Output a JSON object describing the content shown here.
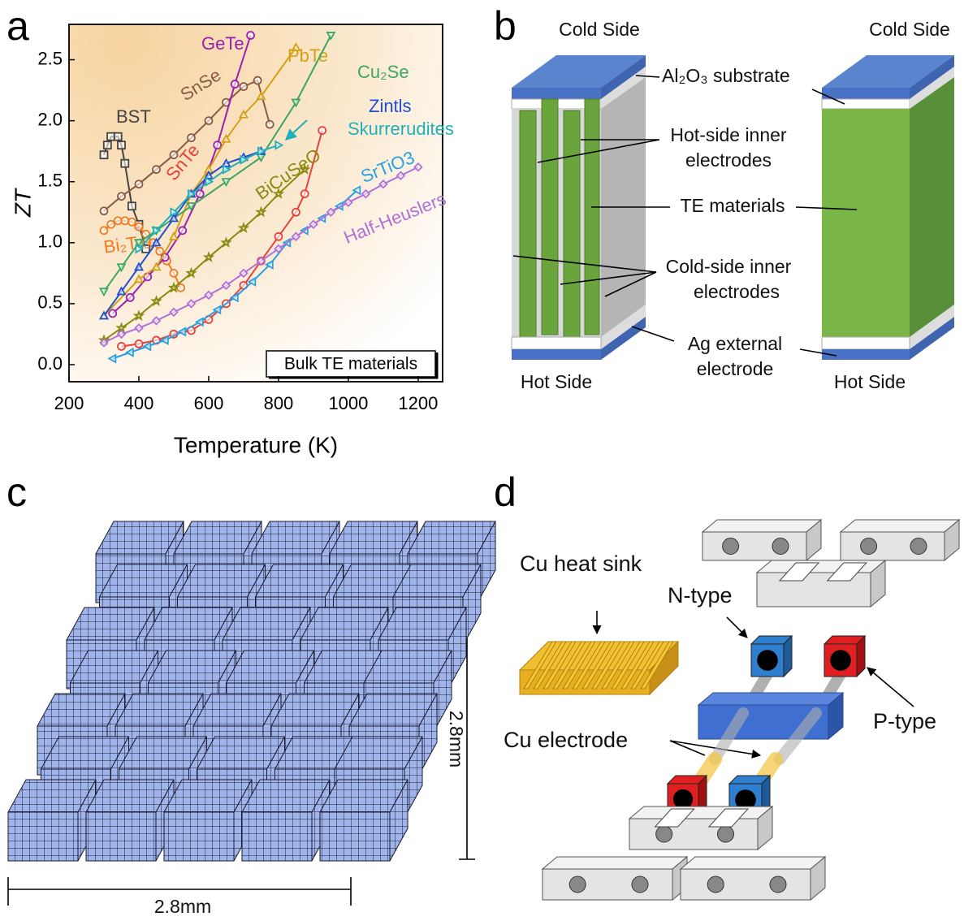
{
  "panel_labels": [
    "a",
    "b",
    "c",
    "d"
  ],
  "chart_data": {
    "type": "line",
    "x_label": "Temperature  (K)",
    "y_label": "ZT",
    "annotation": "Bulk TE materials",
    "xlim": [
      200,
      1270
    ],
    "ylim": [
      -0.14,
      2.79
    ],
    "xticks": [
      200,
      400,
      600,
      800,
      1000,
      1200
    ],
    "yticks": [
      {
        "value": 0,
        "label": "0.0"
      },
      0.5,
      {
        "value": 1,
        "label": "1.0"
      },
      1.5,
      {
        "value": 2,
        "label": "2.0"
      },
      2.5
    ],
    "series": [
      {
        "name": "BST",
        "color": "#444444",
        "marker": "square",
        "x": [
          300,
          310,
          320,
          340,
          350,
          360,
          380,
          400,
          420
        ],
        "values": [
          1.72,
          1.8,
          1.87,
          1.87,
          1.8,
          1.65,
          1.3,
          1.15,
          0.95
        ]
      },
      {
        "name": "Bi₂Te₃",
        "color": "#f07a20",
        "marker": "circle",
        "x": [
          300,
          320,
          340,
          360,
          380,
          400,
          420,
          440,
          460,
          480,
          500,
          520
        ],
        "values": [
          1.1,
          1.15,
          1.18,
          1.18,
          1.17,
          1.13,
          1.07,
          1.0,
          0.93,
          0.85,
          0.75,
          0.63
        ]
      },
      {
        "name": "SnSe",
        "color": "#8b5a44",
        "marker": "circle",
        "x": [
          300,
          350,
          400,
          450,
          500,
          550,
          600,
          650,
          700,
          740,
          775
        ],
        "values": [
          1.26,
          1.38,
          1.48,
          1.6,
          1.72,
          1.86,
          2.0,
          2.15,
          2.28,
          2.33,
          1.97
        ]
      },
      {
        "name": "GeTe",
        "color": "#9b1fb0",
        "marker": "circle",
        "x": [
          325,
          375,
          425,
          475,
          525,
          575,
          625,
          675,
          720
        ],
        "values": [
          0.42,
          0.55,
          0.72,
          0.88,
          1.1,
          1.4,
          1.8,
          2.3,
          2.7
        ]
      },
      {
        "name": "PbTe",
        "color": "#d4a017",
        "marker": "triangle-up",
        "x": [
          300,
          400,
          450,
          500,
          550,
          600,
          650,
          700,
          750,
          850
        ],
        "values": [
          0.4,
          0.7,
          0.8,
          1.05,
          1.4,
          1.6,
          1.85,
          2.05,
          2.2,
          2.6
        ]
      },
      {
        "name": "Cu₂Se",
        "color": "#3aa860",
        "marker": "triangle-down",
        "x": [
          300,
          350,
          400,
          450,
          550,
          650,
          750,
          850,
          950
        ],
        "values": [
          0.6,
          0.8,
          1.0,
          1.1,
          1.3,
          1.5,
          1.7,
          2.15,
          2.7
        ]
      },
      {
        "name": "Zintls",
        "color": "#1f4fcc",
        "marker": "triangle-up",
        "x": [
          300,
          350,
          400,
          450,
          500,
          550,
          600,
          650,
          700,
          750
        ],
        "values": [
          0.4,
          0.6,
          0.8,
          1.0,
          1.2,
          1.4,
          1.55,
          1.65,
          1.7,
          1.75
        ]
      },
      {
        "name": "Skurrerudites",
        "color": "#20b0b8",
        "marker": "triangle-right",
        "x": [
          400,
          450,
          500,
          550,
          600,
          650,
          700,
          750,
          800
        ],
        "values": [
          0.95,
          1.1,
          1.25,
          1.4,
          1.5,
          1.6,
          1.68,
          1.75,
          1.8
        ]
      },
      {
        "name": "SnTe",
        "color": "#e8413c",
        "marker": "circle",
        "x": [
          350,
          400,
          450,
          500,
          550,
          600,
          650,
          700,
          750,
          800,
          850,
          875,
          925
        ],
        "values": [
          0.15,
          0.17,
          0.2,
          0.25,
          0.28,
          0.37,
          0.5,
          0.65,
          0.85,
          1.05,
          1.25,
          1.4,
          1.92
        ]
      },
      {
        "name": "BiCuSeO",
        "color": "#8a8a10",
        "marker": "star",
        "x": [
          300,
          350,
          400,
          450,
          500,
          550,
          600,
          650,
          700,
          750,
          800,
          875
        ],
        "values": [
          0.2,
          0.3,
          0.4,
          0.52,
          0.63,
          0.75,
          0.88,
          1.0,
          1.12,
          1.25,
          1.4,
          1.6
        ]
      },
      {
        "name": "SrTiO3",
        "color": "#2aa0e0",
        "marker": "triangle-left",
        "x": [
          325,
          375,
          425,
          475,
          525,
          575,
          625,
          675,
          725,
          775,
          825,
          875,
          925,
          975,
          1025
        ],
        "values": [
          0.05,
          0.1,
          0.15,
          0.2,
          0.27,
          0.35,
          0.45,
          0.55,
          0.68,
          0.82,
          1.0,
          1.1,
          1.2,
          1.3,
          1.43
        ]
      },
      {
        "name": "Half-Heuslers",
        "color": "#b070d8",
        "marker": "diamond",
        "x": [
          300,
          350,
          400,
          450,
          500,
          550,
          600,
          650,
          700,
          750,
          800,
          850,
          900,
          950,
          1000,
          1050,
          1100,
          1150,
          1200
        ],
        "values": [
          0.18,
          0.25,
          0.3,
          0.36,
          0.43,
          0.5,
          0.57,
          0.65,
          0.75,
          0.85,
          0.95,
          1.05,
          1.15,
          1.25,
          1.33,
          1.4,
          1.48,
          1.55,
          1.62
        ]
      }
    ]
  },
  "panel_b": {
    "cold_side": [
      "Cold Side",
      "Cold Side"
    ],
    "substrate": "Al₂O₃ substrate",
    "hot_side_inner": [
      "Hot-side inner",
      "electrodes"
    ],
    "te_materials": "TE materials",
    "cold_side_inner": [
      "Cold-side inner",
      "electrodes"
    ],
    "ag_external": [
      "Ag external",
      "electrode"
    ],
    "hot_side": [
      "Hot Side",
      "Hot Side"
    ]
  },
  "panel_c": {
    "height": "2.8mm",
    "width": "2.8mm"
  },
  "panel_d": {
    "heat_sink": "Cu heat sink",
    "n_type": "N-type",
    "p_type": "P-type",
    "electrode": "Cu electrode"
  }
}
